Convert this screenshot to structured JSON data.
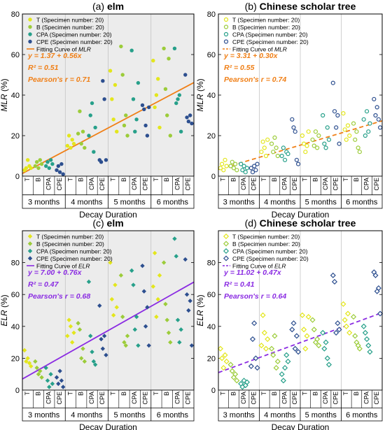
{
  "colors": {
    "T": "#e3e61c",
    "B": "#9ccc3a",
    "CPA": "#27a08a",
    "CPE": "#2d4f8f",
    "fit_orange": "#f07f16",
    "fit_purple": "#8a2be2",
    "panel_bg": "#ececec"
  },
  "chart_data": [
    {
      "type": "scatter",
      "panel": "(a)",
      "title": "elm",
      "ylabel": "MLR (%)",
      "xlabel": "Decay Duration",
      "ylim": [
        0,
        80
      ],
      "yticks": [
        0,
        20,
        40,
        60,
        80
      ],
      "background": "gray",
      "marker": "filled-circle",
      "groups": [
        "3 months",
        "4 months",
        "5 months",
        "6 months"
      ],
      "subcategories": [
        "T",
        "B",
        "CPA",
        "CPE"
      ],
      "legend": [
        "T (Specimen number: 20)",
        "B (Specimen number: 20)",
        "CPA (Specimen number: 20)",
        "CPE (Specimen number: 20)"
      ],
      "fit": {
        "label": "Fitting Curve of MLR",
        "style": "solid",
        "color": "orange",
        "intercept": 1.37,
        "slope": 0.56,
        "x": [
          0,
          80
        ]
      },
      "annotations": [
        "y = 1.37 + 0.56x",
        "R² = 0.51",
        "Pearson's r = 0.71"
      ],
      "series": [
        {
          "name": "T",
          "values": [
            [
              3,
              4,
              8,
              5,
              4
            ],
            [
              15,
              20,
              14,
              18,
              16
            ],
            [
              52,
              38,
              28,
              45,
              22
            ],
            [
              57,
              34,
              40,
              48,
              24
            ]
          ]
        },
        {
          "name": "B",
          "values": [
            [
              5,
              7,
              4,
              8,
              6
            ],
            [
              21,
              32,
              16,
              22,
              14
            ],
            [
              64,
              50,
              25,
              30,
              20
            ],
            [
              63,
              43,
              30,
              58,
              20
            ]
          ]
        },
        {
          "name": "CPA",
          "values": [
            [
              5,
              7,
              4,
              8,
              6
            ],
            [
              20,
              30,
              36,
              12,
              24
            ],
            [
              62,
              38,
              22,
              28,
              46
            ],
            [
              63,
              36,
              38,
              40,
              22
            ]
          ]
        },
        {
          "name": "CPE",
          "values": [
            [
              3,
              5,
              2,
              6,
              1
            ],
            [
              8,
              7,
              47,
              38,
              8
            ],
            [
              35,
              33,
              25,
              20,
              34
            ],
            [
              50,
              29,
              27,
              30,
              26
            ]
          ]
        }
      ]
    },
    {
      "type": "scatter",
      "panel": "(b)",
      "title": "Chinese scholar tree",
      "ylabel": "MLR (%)",
      "xlabel": "Decay Duration",
      "ylim": [
        0,
        80
      ],
      "yticks": [
        0,
        20,
        40,
        60,
        80
      ],
      "background": "white",
      "marker": "hollow-circle",
      "groups": [
        "3 months",
        "4 months",
        "5 months",
        "6 months"
      ],
      "subcategories": [
        "T",
        "B",
        "CPA",
        "CPE"
      ],
      "legend": [
        "T (Specimen number: 20)",
        "B (Specimen number: 20)",
        "CPA (Specimen number: 20)",
        "CPE (Specimen number: 20)"
      ],
      "fit": {
        "label": "Fitting Curve of MLR",
        "style": "dashed",
        "color": "orange",
        "intercept": 3.31,
        "slope": 0.3,
        "x": [
          0,
          80
        ]
      },
      "annotations": [
        "y = 3.31 + 0.30x",
        "R² = 0.55",
        "Pearson's r = 0.74"
      ],
      "series": [
        {
          "name": "T",
          "values": [
            [
              4,
              6,
              3,
              8,
              5
            ],
            [
              12,
              17,
              14,
              10,
              18
            ],
            [
              20,
              16,
              12,
              15,
              22
            ],
            [
              31,
              23,
              18,
              25,
              20
            ]
          ]
        },
        {
          "name": "B",
          "values": [
            [
              5,
              7,
              4,
              6,
              3
            ],
            [
              16,
              12,
              19,
              14,
              10
            ],
            [
              18,
              15,
              22,
              14,
              20
            ],
            [
              26,
              18,
              22,
              14,
              12
            ]
          ]
        },
        {
          "name": "CPA",
          "values": [
            [
              6,
              3,
              5,
              2,
              4
            ],
            [
              10,
              14,
              8,
              12,
              11
            ],
            [
              30,
              16,
              14,
              24,
              18
            ],
            [
              28,
              20,
              32,
              22,
              26
            ]
          ]
        },
        {
          "name": "CPE",
          "values": [
            [
              4,
              2,
              5,
              3,
              6
            ],
            [
              28,
              24,
              22,
              8,
              6
            ],
            [
              46,
              32,
              24,
              30,
              16
            ],
            [
              38,
              30,
              34,
              28,
              24
            ]
          ]
        }
      ]
    },
    {
      "type": "scatter",
      "panel": "(c)",
      "title": "elm",
      "ylabel": "ELR (%)",
      "xlabel": "Decay Duration",
      "ylim": [
        0,
        100
      ],
      "yticks": [
        0,
        20,
        40,
        60,
        80
      ],
      "background": "gray",
      "marker": "filled-diamond",
      "groups": [
        "3 months",
        "4 months",
        "5 months",
        "6 months"
      ],
      "subcategories": [
        "T",
        "B",
        "CPA",
        "CPE"
      ],
      "legend": [
        "T (Specimen number: 20)",
        "B (Specimen number: 20)",
        "CPA (Specimen number: 20)",
        "CPE (Specimen number: 20)"
      ],
      "fit": {
        "label": "Fitting Curve of ELR",
        "style": "solid",
        "color": "purple",
        "intercept": 7.0,
        "slope": 0.76,
        "x": [
          0,
          80
        ]
      },
      "annotations": [
        "y = 7.00 + 0.76x",
        "R² = 0.47",
        "Pearson's r = 0.68"
      ],
      "series": [
        {
          "name": "T",
          "values": [
            [
              25,
              18,
              20,
              17,
              15
            ],
            [
              34,
              44,
              40,
              30,
              36
            ],
            [
              80,
              57,
              47,
              66,
              52
            ],
            [
              65,
              86,
              46,
              57,
              72
            ]
          ]
        },
        {
          "name": "B",
          "values": [
            [
              18,
              14,
              10,
              12,
              8
            ],
            [
              42,
              38,
              20,
              26,
              18
            ],
            [
              72,
              46,
              30,
              28,
              34
            ],
            [
              80,
              54,
              44,
              36,
              30
            ]
          ]
        },
        {
          "name": "CPA",
          "values": [
            [
              14,
              6,
              2,
              10,
              4
            ],
            [
              68,
              34,
              24,
              18,
              16
            ],
            [
              75,
              66,
              38,
              46,
              28
            ],
            [
              95,
              84,
              44,
              30,
              38
            ]
          ]
        },
        {
          "name": "CPE",
          "values": [
            [
              8,
              4,
              12,
              6,
              2
            ],
            [
              53,
              32,
              26,
              34,
              22
            ],
            [
              78,
              62,
              40,
              52,
              28
            ],
            [
              82,
              60,
              50,
              56,
              28
            ]
          ]
        }
      ]
    },
    {
      "type": "scatter",
      "panel": "(d)",
      "title": "Chinese scholar tree",
      "ylabel": "ELR (%)",
      "xlabel": "Decay Duration",
      "ylim": [
        0,
        100
      ],
      "yticks": [
        0,
        20,
        40,
        60,
        80
      ],
      "background": "white",
      "marker": "hollow-diamond",
      "groups": [
        "3 months",
        "4 months",
        "5 months",
        "6 months"
      ],
      "subcategories": [
        "T",
        "B",
        "CPA",
        "CPE"
      ],
      "legend": [
        "T (Specimen number: 20)",
        "B (Specimen number: 20)",
        "CPA (Specimen number: 20)",
        "CPE (Specimen number: 20)"
      ],
      "fit": {
        "label": "Fitting Curve of ELR",
        "style": "dashed",
        "color": "purple",
        "intercept": 11.02,
        "slope": 0.47,
        "x": [
          0,
          80
        ]
      },
      "annotations": [
        "y = 11.02 + 0.47x",
        "R² = 0.41",
        "Pearson's r = 0.64"
      ],
      "series": [
        {
          "name": "T",
          "values": [
            [
              26,
              20,
              14,
              22,
              18
            ],
            [
              28,
              47,
              36,
              26,
              32
            ],
            [
              47,
              38,
              26,
              34,
              46
            ],
            [
              54,
              44,
              40,
              48,
              36
            ]
          ]
        },
        {
          "name": "B",
          "values": [
            [
              16,
              12,
              8,
              10,
              6
            ],
            [
              26,
              22,
              34,
              14,
              18
            ],
            [
              44,
              38,
              30,
              32,
              28
            ],
            [
              46,
              34,
              30,
              28,
              26
            ]
          ]
        },
        {
          "name": "CPA",
          "values": [
            [
              4,
              2,
              6,
              3,
              5
            ],
            [
              10,
              6,
              14,
              22,
              18
            ],
            [
              36,
              26,
              30,
              20,
              16
            ],
            [
              40,
              36,
              32,
              28,
              24
            ]
          ]
        },
        {
          "name": "CPE",
          "values": [
            [
              15,
              32,
              42,
              20,
              14
            ],
            [
              38,
              42,
              26,
              34,
              24
            ],
            [
              72,
              68,
              36,
              42,
              38
            ],
            [
              74,
              72,
              62,
              64,
              48
            ]
          ]
        }
      ]
    }
  ]
}
